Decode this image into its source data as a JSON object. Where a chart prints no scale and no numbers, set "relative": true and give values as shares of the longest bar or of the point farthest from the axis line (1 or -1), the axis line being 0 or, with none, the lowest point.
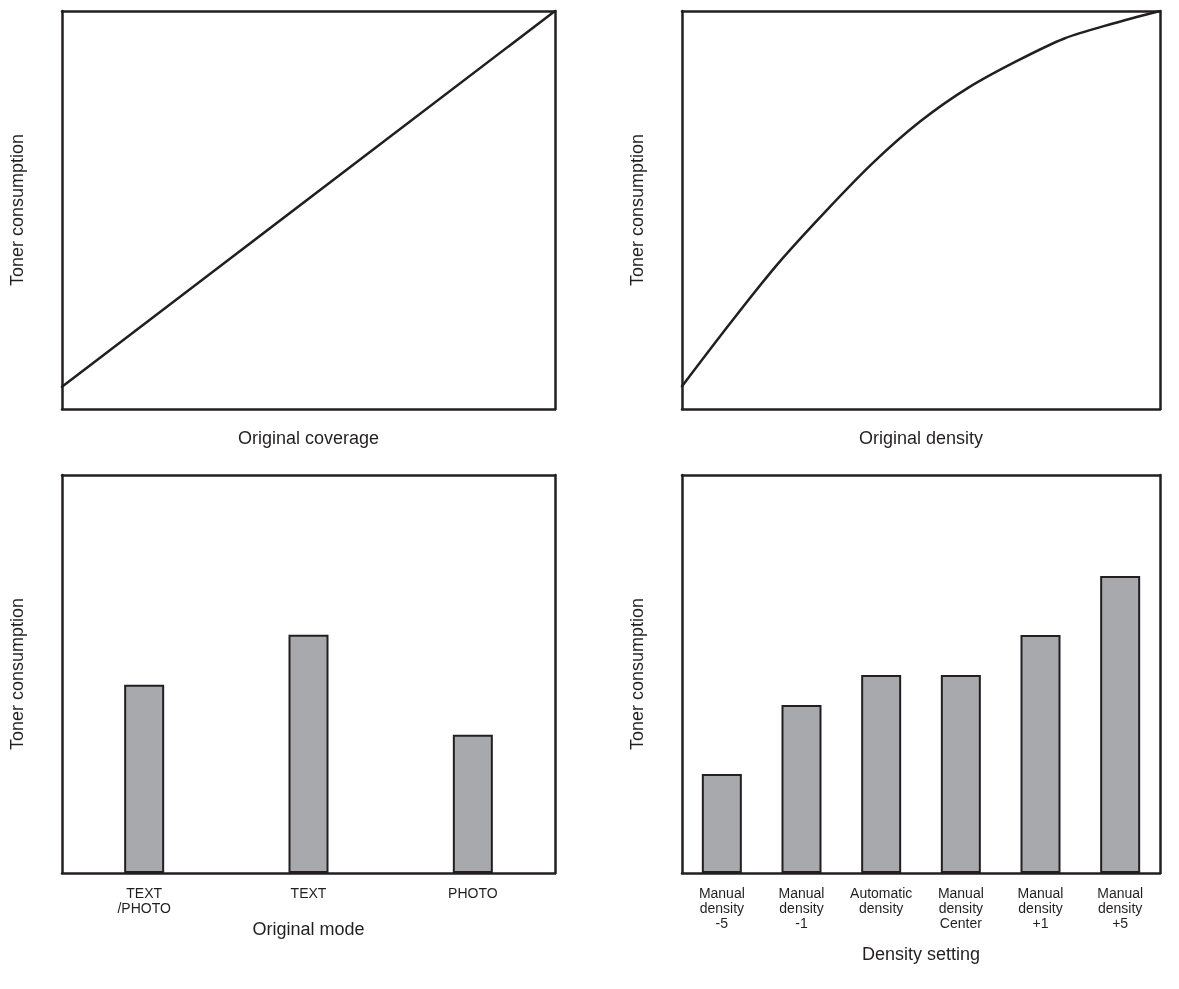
{
  "chart_data": [
    {
      "type": "line",
      "relative": true,
      "marker": "none",
      "xlabel": "Original coverage",
      "ylabel": "Toner consumption",
      "categories": [
        null,
        null
      ],
      "series": [
        {
          "color": "#231f20",
          "values": [
            0.056,
            1
          ]
        }
      ]
    },
    {
      "type": "line",
      "relative": true,
      "marker": "none",
      "xlabel": "Original density",
      "ylabel": "Toner consumption",
      "categories": [
        null,
        null,
        null,
        null,
        null,
        null,
        null,
        null,
        null,
        null,
        null
      ],
      "series": [
        {
          "color": "#231f20",
          "values": [
            0.057,
            0.214,
            0.364,
            0.496,
            0.619,
            0.724,
            0.808,
            0.874,
            0.931,
            0.968,
            1
          ]
        }
      ]
    },
    {
      "type": "bar",
      "relative": true,
      "xlabel": "Original mode",
      "ylabel": "Toner consumption",
      "categories": [
        "TEXT\n/PHOTO",
        "TEXT",
        "PHOTO"
      ],
      "series": [
        {
          "color": "#a7a9ac",
          "values": [
            0.79,
            1,
            0.58
          ]
        }
      ]
    },
    {
      "type": "bar",
      "relative": true,
      "xlabel": "Density setting",
      "ylabel": "Toner consumption",
      "categories": [
        "Manual\ndensity\n-5",
        "Manual\ndensity\n-1",
        "Automatic\ndensity",
        "Manual\ndensity\nCenter",
        "Manual\ndensity\n+1",
        "Manual\ndensity\n+5"
      ],
      "series": [
        {
          "color": "#a7a9ac",
          "values": [
            0.333,
            0.566,
            0.667,
            0.667,
            0.801,
            1
          ]
        }
      ]
    }
  ]
}
